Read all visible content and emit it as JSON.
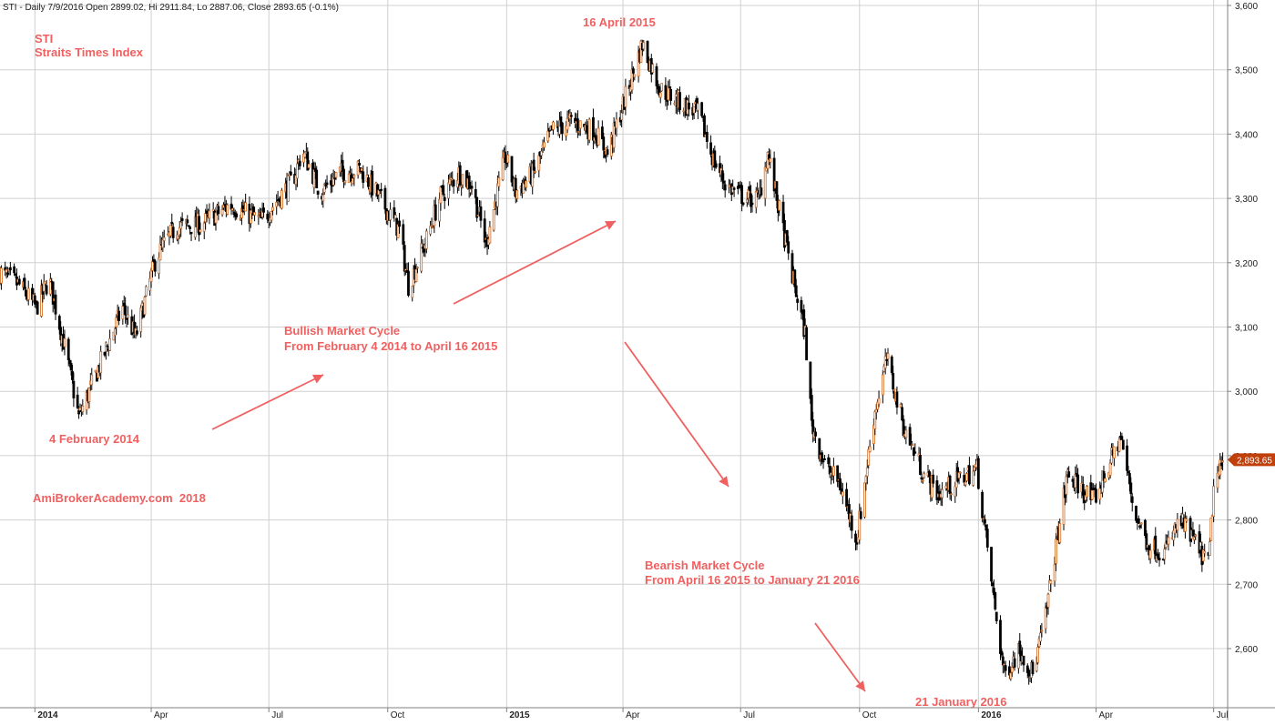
{
  "header": "STI - Daily 7/9/2016 Open 2899.02, Hi 2911.84, Lo 2887.06, Close 2893.65 (-0.1%)",
  "ticker": "STI",
  "name": "Straits Times Index",
  "watermark": "AmiBrokerAcademy.com  2018",
  "colors": {
    "up": "#d2691e",
    "down": "#000000",
    "annotation": "#f06060",
    "grid": "#d0d0d0",
    "price_tag": "#c0400c"
  },
  "annotations": {
    "low_2014": "4 February 2014",
    "peak_2015": "16 April 2015",
    "low_2016": "21 January 2016",
    "bull_title": "Bullish Market Cycle",
    "bull_range": "From February 4 2014 to April 16 2015",
    "bear_title": "Bearish Market Cycle",
    "bear_range": "From April 16 2015 to January 21 2016"
  },
  "chart_data": {
    "type": "candlestick",
    "title": "STI - Daily 7/9/2016 Open 2899.02, Hi 2911.84, Lo 2887.06, Close 2893.65 (-0.1%)",
    "ylim": [
      2520,
      3610
    ],
    "y_ticks": [
      2600,
      2700,
      2800,
      2900,
      3000,
      3100,
      3200,
      3300,
      3400,
      3500,
      3600
    ],
    "y_tick_labels": [
      "2,600",
      "2,700",
      "2,800",
      "2,900",
      "3,000",
      "3,100",
      "3,200",
      "3,300",
      "3,400",
      "3,500",
      "3,600"
    ],
    "x_range": [
      "2013-12-05",
      "2016-07-09"
    ],
    "x_ticks": [
      {
        "date": "2014-01-01",
        "label": "2014",
        "bold": true
      },
      {
        "date": "2014-04-01",
        "label": "Apr",
        "bold": false
      },
      {
        "date": "2014-07-01",
        "label": "Jul",
        "bold": false
      },
      {
        "date": "2014-10-01",
        "label": "Oct",
        "bold": false
      },
      {
        "date": "2015-01-01",
        "label": "2015",
        "bold": true
      },
      {
        "date": "2015-04-01",
        "label": "Apr",
        "bold": false
      },
      {
        "date": "2015-07-01",
        "label": "Jul",
        "bold": false
      },
      {
        "date": "2015-10-01",
        "label": "Oct",
        "bold": false
      },
      {
        "date": "2016-01-01",
        "label": "2016",
        "bold": true
      },
      {
        "date": "2016-04-01",
        "label": "Apr",
        "bold": false
      },
      {
        "date": "2016-07-01",
        "label": "Jul",
        "bold": false
      }
    ],
    "last_close": 2893.65,
    "last_close_label": "2,893.65",
    "grid": true,
    "close_path": [
      [
        "2013-12-05",
        3185
      ],
      [
        "2013-12-20",
        3165
      ],
      [
        "2014-01-02",
        3130
      ],
      [
        "2014-01-12",
        3175
      ],
      [
        "2014-01-25",
        3060
      ],
      [
        "2014-02-04",
        2960
      ],
      [
        "2014-02-20",
        3040
      ],
      [
        "2014-03-10",
        3130
      ],
      [
        "2014-03-20",
        3085
      ],
      [
        "2014-04-05",
        3210
      ],
      [
        "2014-04-20",
        3255
      ],
      [
        "2014-05-10",
        3260
      ],
      [
        "2014-06-01",
        3290
      ],
      [
        "2014-06-25",
        3265
      ],
      [
        "2014-07-20",
        3330
      ],
      [
        "2014-07-27",
        3375
      ],
      [
        "2014-08-10",
        3310
      ],
      [
        "2014-08-25",
        3340
      ],
      [
        "2014-09-10",
        3345
      ],
      [
        "2014-09-25",
        3300
      ],
      [
        "2014-10-10",
        3250
      ],
      [
        "2014-10-17",
        3165
      ],
      [
        "2014-10-30",
        3230
      ],
      [
        "2014-11-10",
        3300
      ],
      [
        "2014-11-25",
        3340
      ],
      [
        "2014-12-05",
        3320
      ],
      [
        "2014-12-16",
        3230
      ],
      [
        "2014-12-31",
        3365
      ],
      [
        "2015-01-08",
        3310
      ],
      [
        "2015-01-22",
        3340
      ],
      [
        "2015-02-05",
        3405
      ],
      [
        "2015-02-20",
        3420
      ],
      [
        "2015-03-10",
        3405
      ],
      [
        "2015-03-20",
        3370
      ],
      [
        "2015-04-05",
        3470
      ],
      [
        "2015-04-16",
        3540
      ],
      [
        "2015-04-30",
        3470
      ],
      [
        "2015-05-15",
        3450
      ],
      [
        "2015-05-30",
        3430
      ],
      [
        "2015-06-10",
        3360
      ],
      [
        "2015-06-20",
        3320
      ],
      [
        "2015-07-05",
        3300
      ],
      [
        "2015-07-15",
        3300
      ],
      [
        "2015-07-22",
        3370
      ],
      [
        "2015-07-30",
        3290
      ],
      [
        "2015-08-10",
        3180
      ],
      [
        "2015-08-20",
        3090
      ],
      [
        "2015-08-25",
        2950
      ],
      [
        "2015-09-05",
        2880
      ],
      [
        "2015-09-15",
        2860
      ],
      [
        "2015-09-29",
        2770
      ],
      [
        "2015-10-12",
        2960
      ],
      [
        "2015-10-22",
        3050
      ],
      [
        "2015-11-05",
        2940
      ],
      [
        "2015-11-20",
        2870
      ],
      [
        "2015-12-01",
        2840
      ],
      [
        "2015-12-15",
        2860
      ],
      [
        "2015-12-31",
        2880
      ],
      [
        "2016-01-07",
        2770
      ],
      [
        "2016-01-14",
        2660
      ],
      [
        "2016-01-21",
        2560
      ],
      [
        "2016-02-02",
        2600
      ],
      [
        "2016-02-12",
        2560
      ],
      [
        "2016-02-22",
        2650
      ],
      [
        "2016-03-01",
        2760
      ],
      [
        "2016-03-10",
        2870
      ],
      [
        "2016-03-20",
        2850
      ],
      [
        "2016-03-30",
        2830
      ],
      [
        "2016-04-10",
        2880
      ],
      [
        "2016-04-20",
        2930
      ],
      [
        "2016-05-01",
        2810
      ],
      [
        "2016-05-12",
        2760
      ],
      [
        "2016-05-24",
        2750
      ],
      [
        "2016-06-05",
        2800
      ],
      [
        "2016-06-15",
        2770
      ],
      [
        "2016-06-27",
        2730
      ],
      [
        "2016-07-01",
        2850
      ],
      [
        "2016-07-09",
        2893.65
      ]
    ]
  }
}
